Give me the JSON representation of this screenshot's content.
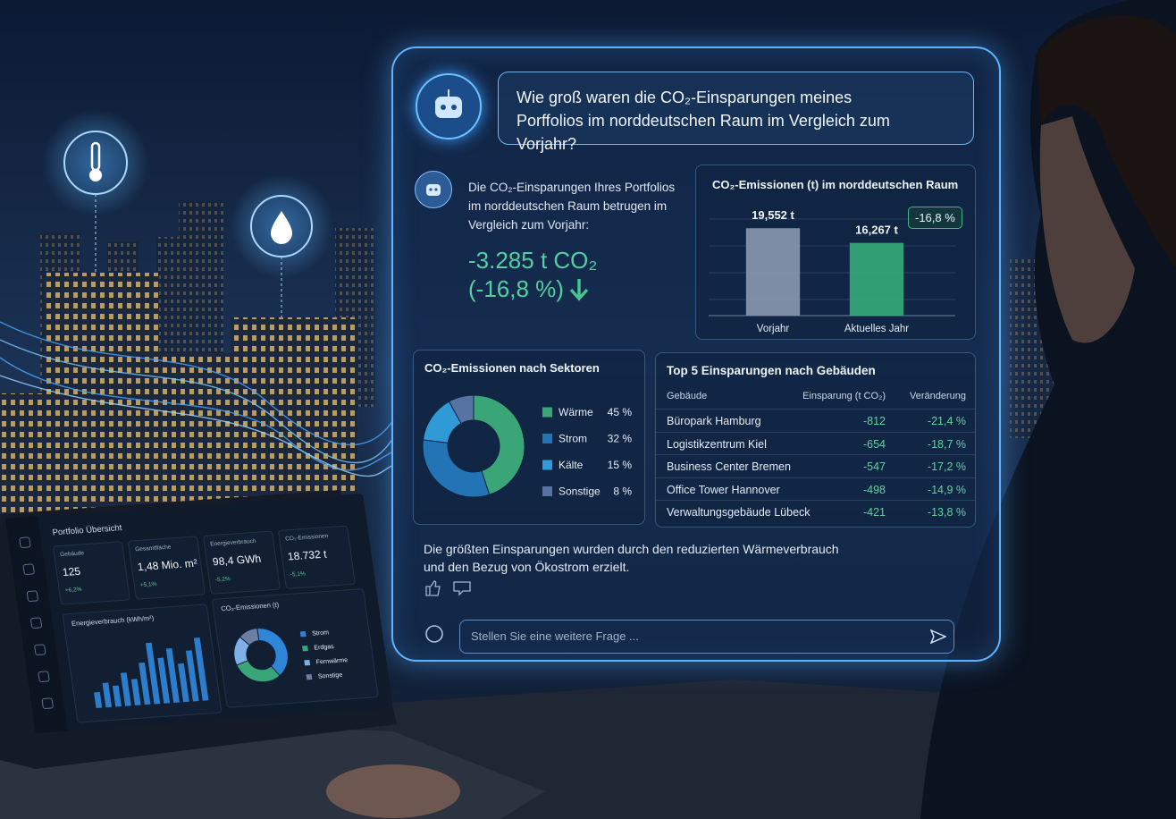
{
  "question": "Wie groß waren die CO₂-Einsparungen meines Porffolios im norddeutschen Raum im Vergleich zum Vorjahr?",
  "answer": {
    "text": "Die CO₂-Einsparungen Ihres Portfolios im norddeutschen Raum betrugen im Vergleich zum Vorjahr:",
    "amount": "-3.285 t CO₂",
    "change": "(-16,8 %)"
  },
  "chart_data": [
    {
      "type": "bar",
      "title": "CO₂-Emissionen (t) im norddeutschen Raum",
      "categories": [
        "Vorjahr",
        "Aktuelles Jahr"
      ],
      "values": [
        19552,
        16267
      ],
      "value_labels": [
        "19,552 t",
        "16,267 t"
      ],
      "colors": [
        "#8596ae",
        "#35a878"
      ],
      "ylim": [
        0,
        24000
      ],
      "annotation": "-16,8 %"
    },
    {
      "type": "donut",
      "title": "CO₂-Emissionen nach Sektoren",
      "categories": [
        "Wärme",
        "Strom",
        "Kälte",
        "Sonstige"
      ],
      "values": [
        45,
        32,
        15,
        8
      ],
      "value_labels": [
        "45 %",
        "32 %",
        "15 %",
        "8 %"
      ],
      "colors": [
        "#3aa577",
        "#2374b4",
        "#2f9ad6",
        "#5673a3"
      ]
    },
    {
      "type": "bar",
      "title": "Energieverbrauch (kWh/m²)",
      "values": [
        18,
        28,
        24,
        38,
        30,
        48,
        70,
        52,
        62,
        44,
        58,
        72
      ],
      "color": "#2f86d8",
      "ylim": [
        0,
        80
      ]
    },
    {
      "type": "donut",
      "title": "CO₂-Emissionen (t)",
      "categories": [
        "Strom",
        "Erdgas",
        "Fernwärme",
        "Sonstige"
      ],
      "values": [
        40,
        30,
        18,
        12
      ],
      "colors": [
        "#2f86d8",
        "#3aa577",
        "#7fb0e6",
        "#6c7fa0"
      ]
    }
  ],
  "top5": {
    "title": "Top 5 Einsparungen nach Gebäuden",
    "columns": [
      "Gebäude",
      "Einsparung (t CO₂)",
      "Veränderung"
    ],
    "rows": [
      [
        "Büropark Hamburg",
        "-812",
        "-21,4 %"
      ],
      [
        "Logistikzentrum Kiel",
        "-654",
        "-18,7 %"
      ],
      [
        "Business Center Bremen",
        "-547",
        "-17,2 %"
      ],
      [
        "Office Tower Hannover",
        "-498",
        "-14,9 %"
      ],
      [
        "Verwaltungsgebäude Lübeck",
        "-421",
        "-13,8 %"
      ]
    ]
  },
  "summary": "Die größten Einsparungen wurden durch den reduzierten Wärmeverbrauch und den Bezug von Ökostrom erzielt.",
  "input_placeholder": "Stellen Sie eine weitere Frage ...",
  "laptop": {
    "title": "Portfolio Übersicht",
    "kpis": [
      {
        "label": "Gebäude",
        "value": "125",
        "change": "+6,2%"
      },
      {
        "label": "Gesamtfläche",
        "value": "1,48 Mio. m²",
        "change": "+5,1%"
      },
      {
        "label": "Energieverbrauch",
        "value": "98,4 GWh",
        "change": "-5,2%"
      },
      {
        "label": "CO₂-Emissionen",
        "value": "18.732 t",
        "change": "-5,1%"
      }
    ]
  }
}
